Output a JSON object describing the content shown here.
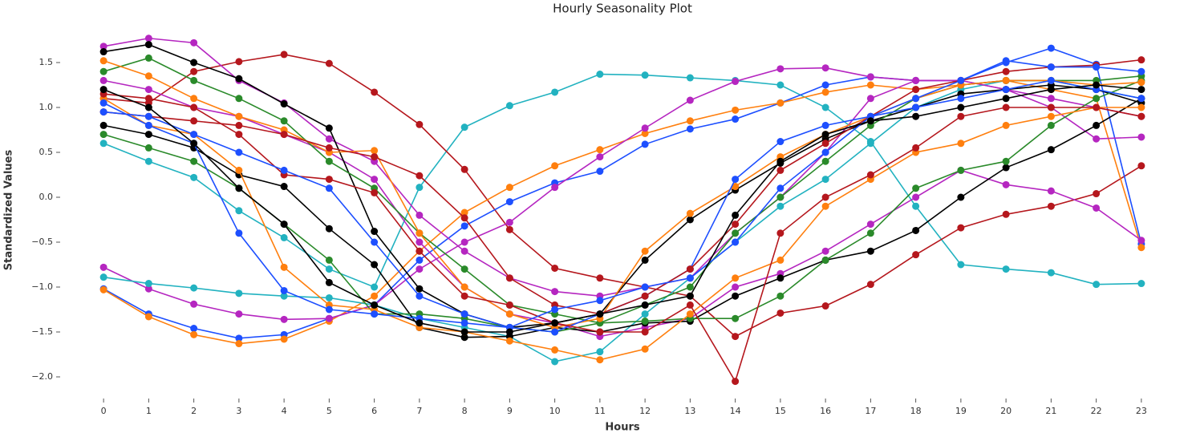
{
  "chart_data": {
    "type": "line",
    "title": "Hourly Seasonality Plot",
    "x_label": "Hours",
    "y_label": "Standardized Values",
    "x": [
      0,
      1,
      2,
      3,
      4,
      5,
      6,
      7,
      8,
      9,
      10,
      11,
      12,
      13,
      14,
      15,
      16,
      17,
      18,
      19,
      20,
      21,
      22,
      23
    ],
    "xlim": [
      -0.5,
      23.5
    ],
    "xticks": [
      0,
      1,
      2,
      3,
      4,
      5,
      6,
      7,
      8,
      9,
      10,
      11,
      12,
      13,
      14,
      15,
      16,
      17,
      18,
      19,
      20,
      21,
      22,
      23
    ],
    "ylim": [
      -2.2,
      1.85
    ],
    "yticks": [
      {
        "value": -2,
        "label": "−2.0"
      },
      {
        "value": -1.5,
        "label": "−1.5"
      },
      {
        "value": -1,
        "label": "−1.0"
      },
      {
        "value": -0.5,
        "label": "−0.5"
      },
      {
        "value": 0,
        "label": "0.0"
      },
      {
        "value": 0.5,
        "label": "0.5"
      },
      {
        "value": 1,
        "label": "1.0"
      },
      {
        "value": 1.5,
        "label": "1.5"
      }
    ],
    "grid": false,
    "series": [
      {
        "color": "#22b2c0",
        "values": [
          0.6,
          0.4,
          0.22,
          -0.15,
          -0.45,
          -0.8,
          -1.0,
          0.11,
          0.78,
          1.02,
          1.17,
          1.37,
          1.36,
          1.33,
          1.3,
          1.25,
          1.0,
          0.62,
          -0.1,
          -0.75,
          -0.8,
          -0.84,
          -0.97,
          -0.96
        ]
      },
      {
        "color": "#b5171d",
        "values": [
          1.1,
          1.05,
          1.4,
          1.51,
          1.59,
          1.49,
          1.17,
          0.81,
          0.31,
          -0.36,
          -0.79,
          -0.9,
          -1.0,
          -1.1,
          -1.55,
          -1.29,
          -1.21,
          -0.97,
          -0.64,
          -0.34,
          -0.19,
          -0.1,
          0.04,
          0.35
        ]
      },
      {
        "color": "#1d4fff",
        "values": [
          -1.02,
          -1.3,
          -1.46,
          -1.57,
          -1.53,
          -1.35,
          -1.2,
          -0.7,
          -0.32,
          -0.05,
          0.16,
          0.29,
          0.59,
          0.76,
          0.87,
          1.05,
          1.25,
          1.34,
          1.3,
          1.3,
          1.5,
          1.66,
          1.48,
          -0.52
        ]
      },
      {
        "color": "#ff7f0e",
        "values": [
          -1.03,
          -1.33,
          -1.53,
          -1.63,
          -1.58,
          -1.38,
          -1.1,
          -0.6,
          -0.17,
          0.11,
          0.35,
          0.53,
          0.71,
          0.85,
          0.97,
          1.05,
          1.17,
          1.25,
          1.2,
          1.25,
          1.3,
          1.2,
          1.1,
          -0.56
        ]
      },
      {
        "color": "#b526c0",
        "values": [
          -0.78,
          -1.02,
          -1.19,
          -1.3,
          -1.36,
          -1.35,
          -1.2,
          -0.8,
          -0.5,
          -0.28,
          0.11,
          0.45,
          0.77,
          1.08,
          1.29,
          1.43,
          1.44,
          1.34,
          1.3,
          1.3,
          1.2,
          1.1,
          1.0,
          0.9
        ]
      },
      {
        "color": "#22b2c0",
        "values": [
          -0.89,
          -0.96,
          -1.01,
          -1.07,
          -1.1,
          -1.12,
          -1.2,
          -1.35,
          -1.45,
          -1.55,
          -1.83,
          -1.72,
          -1.3,
          -0.9,
          -0.5,
          -0.1,
          0.2,
          0.6,
          1.0,
          1.2,
          1.3,
          1.3,
          1.2,
          1.1
        ]
      },
      {
        "color": "#b526c0",
        "values": [
          1.68,
          1.77,
          1.72,
          1.3,
          1.05,
          0.65,
          0.4,
          -0.2,
          -0.6,
          -0.9,
          -1.05,
          -1.1,
          -1.0,
          -0.9,
          -0.4,
          0.0,
          0.5,
          1.1,
          1.3,
          1.3,
          1.2,
          1.0,
          0.65,
          0.67
        ]
      },
      {
        "color": "#b526c0",
        "values": [
          1.3,
          1.2,
          1.0,
          0.9,
          0.7,
          0.5,
          0.2,
          -0.5,
          -1.0,
          -1.3,
          -1.4,
          -1.55,
          -1.45,
          -1.35,
          -1.0,
          -0.85,
          -0.6,
          -0.3,
          0.0,
          0.3,
          0.14,
          0.07,
          -0.12,
          -0.48
        ]
      },
      {
        "color": "#000000",
        "values": [
          1.62,
          1.7,
          1.5,
          1.32,
          1.04,
          0.77,
          -0.38,
          -1.02,
          -1.3,
          -1.45,
          -1.4,
          -1.3,
          -0.7,
          -0.25,
          0.08,
          0.38,
          0.65,
          0.85,
          1.0,
          1.15,
          1.2,
          1.25,
          1.2,
          1.05
        ]
      },
      {
        "color": "#000000",
        "values": [
          0.8,
          0.7,
          0.55,
          0.25,
          0.12,
          -0.35,
          -0.75,
          -1.45,
          -1.56,
          -1.55,
          -1.45,
          -1.5,
          -1.4,
          -1.38,
          -1.1,
          -0.9,
          -0.7,
          -0.6,
          -0.37,
          0.0,
          0.33,
          0.53,
          0.8,
          1.1
        ]
      },
      {
        "color": "#2a8a2a",
        "values": [
          1.4,
          1.55,
          1.3,
          1.1,
          0.85,
          0.4,
          0.1,
          -0.4,
          -0.8,
          -1.2,
          -1.3,
          -1.4,
          -1.2,
          -1.0,
          -0.4,
          0.0,
          0.4,
          0.8,
          1.1,
          1.25,
          1.3,
          1.3,
          1.3,
          1.35
        ]
      },
      {
        "color": "#2a8a2a",
        "values": [
          0.7,
          0.55,
          0.4,
          0.1,
          -0.3,
          -0.7,
          -1.3,
          -1.3,
          -1.35,
          -1.45,
          -1.5,
          -1.4,
          -1.38,
          -1.35,
          -1.35,
          -1.1,
          -0.7,
          -0.4,
          0.1,
          0.3,
          0.4,
          0.8,
          1.1,
          1.3
        ]
      },
      {
        "color": "#ff7f0e",
        "values": [
          1.52,
          1.35,
          1.1,
          0.9,
          0.75,
          0.5,
          0.52,
          -0.4,
          -1.0,
          -1.3,
          -1.45,
          -1.35,
          -0.6,
          -0.18,
          0.12,
          0.45,
          0.7,
          0.9,
          1.1,
          1.25,
          1.3,
          1.3,
          1.25,
          1.28
        ]
      },
      {
        "color": "#ff7f0e",
        "values": [
          1.1,
          0.8,
          0.7,
          0.3,
          -0.78,
          -1.2,
          -1.25,
          -1.45,
          -1.5,
          -1.6,
          -1.7,
          -1.81,
          -1.69,
          -1.3,
          -0.9,
          -0.7,
          -0.1,
          0.2,
          0.5,
          0.6,
          0.8,
          0.9,
          1.0,
          1.0
        ]
      },
      {
        "color": "#1d4fff",
        "values": [
          1.05,
          0.8,
          0.6,
          -0.4,
          -1.04,
          -1.25,
          -1.3,
          -1.35,
          -1.4,
          -1.45,
          -1.5,
          -1.3,
          -1.1,
          -0.8,
          0.2,
          0.62,
          0.8,
          0.9,
          1.0,
          1.1,
          1.2,
          1.3,
          1.2,
          1.1
        ]
      },
      {
        "color": "#b5171d",
        "values": [
          1.15,
          1.1,
          1.0,
          0.7,
          0.25,
          0.2,
          0.05,
          -0.6,
          -1.1,
          -1.2,
          -1.4,
          -1.5,
          -1.5,
          -1.2,
          -2.05,
          -0.4,
          0.0,
          0.25,
          0.55,
          0.9,
          1.0,
          1.0,
          1.0,
          0.9
        ]
      },
      {
        "color": "#b5171d",
        "values": [
          0.95,
          0.9,
          0.85,
          0.8,
          0.7,
          0.55,
          0.45,
          0.24,
          -0.23,
          -0.9,
          -1.2,
          -1.3,
          -1.1,
          -0.8,
          -0.3,
          0.3,
          0.6,
          0.9,
          1.2,
          1.3,
          1.4,
          1.45,
          1.47,
          1.53
        ]
      },
      {
        "color": "#1d4fff",
        "values": [
          0.95,
          0.9,
          0.7,
          0.5,
          0.3,
          0.1,
          -0.5,
          -1.1,
          -1.3,
          -1.45,
          -1.25,
          -1.15,
          -1.0,
          -0.9,
          -0.5,
          0.1,
          0.5,
          0.9,
          1.1,
          1.3,
          1.52,
          1.45,
          1.45,
          1.4
        ]
      },
      {
        "color": "#000000",
        "values": [
          1.2,
          1.0,
          0.6,
          0.1,
          -0.3,
          -0.95,
          -1.2,
          -1.4,
          -1.5,
          -1.5,
          -1.4,
          -1.3,
          -1.2,
          -1.1,
          -0.2,
          0.4,
          0.7,
          0.85,
          0.9,
          1.0,
          1.1,
          1.2,
          1.25,
          1.2
        ]
      }
    ]
  }
}
